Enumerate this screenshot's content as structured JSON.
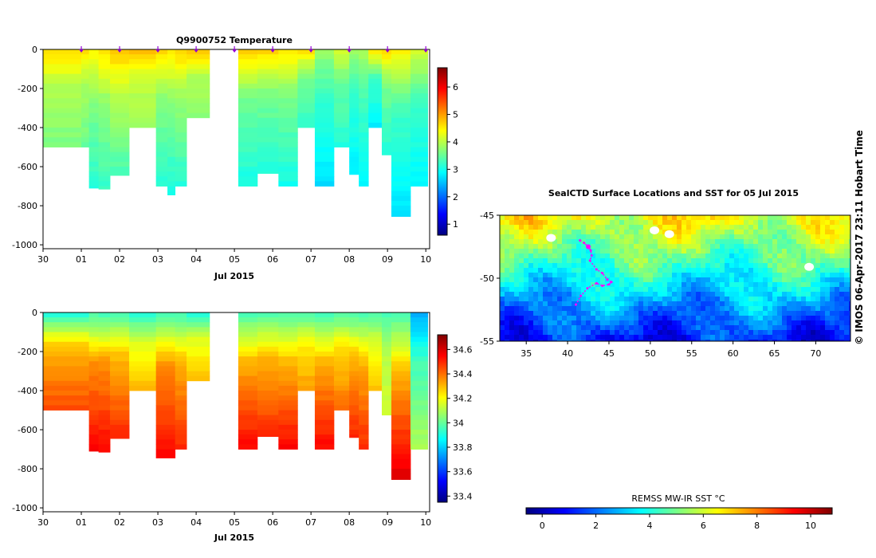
{
  "chart_data": [
    {
      "type": "heatmap",
      "id": "temperature",
      "title": "Q9900752  Temperature",
      "xlabel": "Jul 2015",
      "x_ticks": [
        "30",
        "01",
        "02",
        "03",
        "04",
        "05",
        "06",
        "07",
        "08",
        "09",
        "10"
      ],
      "y_ticks": [
        "0",
        "-200",
        "-400",
        "-600",
        "-800",
        "-1000"
      ],
      "y_tick_values": [
        0,
        -200,
        -400,
        -600,
        -800,
        -1000
      ],
      "ylim": [
        -1020,
        0
      ],
      "xlim": [
        0,
        10.1
      ],
      "colorbar_ticks": [
        "1",
        "2",
        "3",
        "4",
        "5",
        "6"
      ],
      "colorbar_values": [
        1,
        2,
        3,
        4,
        5,
        6
      ],
      "colorbar_range": [
        0.6,
        6.7
      ],
      "markers_at_days": [
        1,
        2,
        3,
        4,
        5,
        6,
        7,
        8,
        9,
        10
      ],
      "profiles": [
        {
          "t0": 0.0,
          "t1": 1.0,
          "maxdepth": 500,
          "top": 4.7,
          "mid": 4.0,
          "bot": 3.6
        },
        {
          "t0": 1.0,
          "t1": 1.2,
          "maxdepth": 500,
          "top": 4.6,
          "mid": 3.9,
          "bot": 3.5
        },
        {
          "t0": 1.2,
          "t1": 1.45,
          "maxdepth": 710,
          "top": 4.5,
          "mid": 3.7,
          "bot": 3.1
        },
        {
          "t0": 1.45,
          "t1": 1.75,
          "maxdepth": 715,
          "top": 4.6,
          "mid": 3.8,
          "bot": 3.2
        },
        {
          "t0": 1.75,
          "t1": 2.25,
          "maxdepth": 645,
          "top": 4.8,
          "mid": 4.0,
          "bot": 3.3
        },
        {
          "t0": 2.25,
          "t1": 2.95,
          "maxdepth": 400,
          "top": 4.9,
          "mid": 4.1,
          "bot": 3.8
        },
        {
          "t0": 2.95,
          "t1": 3.25,
          "maxdepth": 700,
          "top": 4.7,
          "mid": 3.7,
          "bot": 3.1
        },
        {
          "t0": 3.25,
          "t1": 3.45,
          "maxdepth": 745,
          "top": 4.6,
          "mid": 3.7,
          "bot": 3.0
        },
        {
          "t0": 3.45,
          "t1": 3.75,
          "maxdepth": 700,
          "top": 4.7,
          "mid": 3.8,
          "bot": 3.1
        },
        {
          "t0": 3.75,
          "t1": 4.35,
          "maxdepth": 350,
          "top": 4.8,
          "mid": 4.0,
          "bot": 3.7
        },
        {
          "t0": 5.1,
          "t1": 5.6,
          "maxdepth": 700,
          "top": 4.7,
          "mid": 3.6,
          "bot": 3.0
        },
        {
          "t0": 5.6,
          "t1": 6.15,
          "maxdepth": 635,
          "top": 4.7,
          "mid": 3.6,
          "bot": 3.1
        },
        {
          "t0": 6.15,
          "t1": 6.65,
          "maxdepth": 700,
          "top": 4.6,
          "mid": 3.6,
          "bot": 3.0
        },
        {
          "t0": 6.65,
          "t1": 7.1,
          "maxdepth": 400,
          "top": 4.6,
          "mid": 3.6,
          "bot": 3.2
        },
        {
          "t0": 7.1,
          "t1": 7.6,
          "maxdepth": 700,
          "top": 3.8,
          "mid": 3.2,
          "bot": 2.7
        },
        {
          "t0": 7.6,
          "t1": 8.0,
          "maxdepth": 500,
          "top": 4.2,
          "mid": 3.5,
          "bot": 3.1
        },
        {
          "t0": 8.0,
          "t1": 8.25,
          "maxdepth": 640,
          "top": 3.8,
          "mid": 3.2,
          "bot": 2.8
        },
        {
          "t0": 8.25,
          "t1": 8.5,
          "maxdepth": 700,
          "top": 3.9,
          "mid": 3.3,
          "bot": 2.9
        },
        {
          "t0": 8.5,
          "t1": 8.85,
          "maxdepth": 400,
          "top": 4.6,
          "mid": 3.3,
          "bot": 2.8
        },
        {
          "t0": 8.85,
          "t1": 9.1,
          "maxdepth": 540,
          "top": 4.7,
          "mid": 3.6,
          "bot": 3.1
        },
        {
          "t0": 9.1,
          "t1": 9.6,
          "maxdepth": 855,
          "top": 4.5,
          "mid": 3.3,
          "bot": 2.7
        },
        {
          "t0": 9.6,
          "t1": 10.05,
          "maxdepth": 700,
          "top": 4.2,
          "mid": 3.3,
          "bot": 2.8
        }
      ]
    },
    {
      "type": "heatmap",
      "id": "salinity",
      "title": "",
      "xlabel": "Jul 2015",
      "x_ticks": [
        "30",
        "01",
        "02",
        "03",
        "04",
        "05",
        "06",
        "07",
        "08",
        "09",
        "10"
      ],
      "y_ticks": [
        "0",
        "-200",
        "-400",
        "-600",
        "-800",
        "-1000"
      ],
      "y_tick_values": [
        0,
        -200,
        -400,
        -600,
        -800,
        -1000
      ],
      "ylim": [
        -1020,
        0
      ],
      "xlim": [
        0,
        10.1
      ],
      "colorbar_ticks": [
        "33.4",
        "33.6",
        "33.8",
        "34",
        "34.2",
        "34.4",
        "34.6"
      ],
      "colorbar_values": [
        33.4,
        33.6,
        33.8,
        34.0,
        34.2,
        34.4,
        34.6
      ],
      "colorbar_range": [
        33.35,
        34.72
      ],
      "profiles": [
        {
          "t0": 0.0,
          "t1": 1.2,
          "maxdepth": 500,
          "top": 33.9,
          "mid": 34.3,
          "bot": 34.45
        },
        {
          "t0": 1.2,
          "t1": 1.45,
          "maxdepth": 710,
          "top": 33.95,
          "mid": 34.35,
          "bot": 34.55
        },
        {
          "t0": 1.45,
          "t1": 1.75,
          "maxdepth": 715,
          "top": 33.95,
          "mid": 34.35,
          "bot": 34.55
        },
        {
          "t0": 1.75,
          "t1": 2.25,
          "maxdepth": 645,
          "top": 33.95,
          "mid": 34.3,
          "bot": 34.5
        },
        {
          "t0": 2.25,
          "t1": 2.95,
          "maxdepth": 400,
          "top": 33.9,
          "mid": 34.15,
          "bot": 34.3
        },
        {
          "t0": 2.95,
          "t1": 3.45,
          "maxdepth": 745,
          "top": 33.95,
          "mid": 34.35,
          "bot": 34.55
        },
        {
          "t0": 3.45,
          "t1": 3.75,
          "maxdepth": 700,
          "top": 33.95,
          "mid": 34.3,
          "bot": 34.5
        },
        {
          "t0": 3.75,
          "t1": 4.35,
          "maxdepth": 350,
          "top": 33.9,
          "mid": 34.15,
          "bot": 34.3
        },
        {
          "t0": 5.1,
          "t1": 5.6,
          "maxdepth": 700,
          "top": 33.95,
          "mid": 34.3,
          "bot": 34.55
        },
        {
          "t0": 5.6,
          "t1": 6.15,
          "maxdepth": 635,
          "top": 33.95,
          "mid": 34.3,
          "bot": 34.5
        },
        {
          "t0": 6.15,
          "t1": 6.65,
          "maxdepth": 700,
          "top": 33.95,
          "mid": 34.3,
          "bot": 34.55
        },
        {
          "t0": 6.65,
          "t1": 7.1,
          "maxdepth": 400,
          "top": 33.95,
          "mid": 34.2,
          "bot": 34.35
        },
        {
          "t0": 7.1,
          "t1": 7.6,
          "maxdepth": 700,
          "top": 33.95,
          "mid": 34.3,
          "bot": 34.55
        },
        {
          "t0": 7.6,
          "t1": 8.0,
          "maxdepth": 500,
          "top": 33.95,
          "mid": 34.25,
          "bot": 34.4
        },
        {
          "t0": 8.0,
          "t1": 8.25,
          "maxdepth": 640,
          "top": 33.95,
          "mid": 34.3,
          "bot": 34.5
        },
        {
          "t0": 8.25,
          "t1": 8.5,
          "maxdepth": 700,
          "top": 33.95,
          "mid": 34.3,
          "bot": 34.5
        },
        {
          "t0": 8.5,
          "t1": 8.85,
          "maxdepth": 400,
          "top": 33.95,
          "mid": 34.15,
          "bot": 34.3
        },
        {
          "t0": 8.85,
          "t1": 9.1,
          "maxdepth": 525,
          "top": 33.95,
          "mid": 34.1,
          "bot": 34.15
        },
        {
          "t0": 9.1,
          "t1": 9.6,
          "maxdepth": 855,
          "top": 33.95,
          "mid": 34.3,
          "bot": 34.6
        },
        {
          "t0": 9.6,
          "t1": 10.05,
          "maxdepth": 700,
          "top": 33.75,
          "mid": 33.95,
          "bot": 34.1
        }
      ]
    },
    {
      "type": "heatmap",
      "id": "sst-map",
      "title": "SealCTD Surface Locations and SST for 05 Jul 2015",
      "x_ticks": [
        "35",
        "40",
        "45",
        "50",
        "55",
        "60",
        "65",
        "70"
      ],
      "x_tick_values": [
        35,
        40,
        45,
        50,
        55,
        60,
        65,
        70
      ],
      "y_ticks": [
        "-45",
        "-50",
        "-55"
      ],
      "y_tick_values": [
        -45,
        -50,
        -55
      ],
      "xlim": [
        31.8,
        74.2
      ],
      "ylim": [
        -55,
        -45
      ],
      "colorbar_title": "REMSS MW-IR SST °C",
      "colorbar_ticks": [
        "0",
        "2",
        "4",
        "6",
        "8",
        "10"
      ],
      "colorbar_values": [
        0,
        2,
        4,
        6,
        8,
        10
      ],
      "colorbar_range": [
        -0.6,
        10.8
      ],
      "sst_north": 6.5,
      "sst_south": 1.0,
      "no_data_patches": [
        {
          "lon": 38.0,
          "lat": -46.8
        },
        {
          "lon": 50.5,
          "lat": -46.2
        },
        {
          "lon": 52.3,
          "lat": -46.5
        },
        {
          "lon": 69.2,
          "lat": -49.1
        }
      ],
      "seal_track_lon": [
        41.5,
        42.0,
        42.5,
        42.8,
        42.9,
        42.7,
        43.5,
        44.2,
        44.8,
        45.3,
        45.0,
        44.2,
        43.5,
        42.4,
        41.6,
        41.0
      ],
      "seal_track_lat": [
        -47.0,
        -47.2,
        -47.5,
        -47.8,
        -48.2,
        -48.6,
        -49.3,
        -49.6,
        -50.1,
        -50.3,
        -50.5,
        -50.6,
        -50.4,
        -50.8,
        -51.4,
        -52.1
      ]
    }
  ],
  "side_caption": "© IMOS 06-Apr-2017 23:11 Hobart Time"
}
